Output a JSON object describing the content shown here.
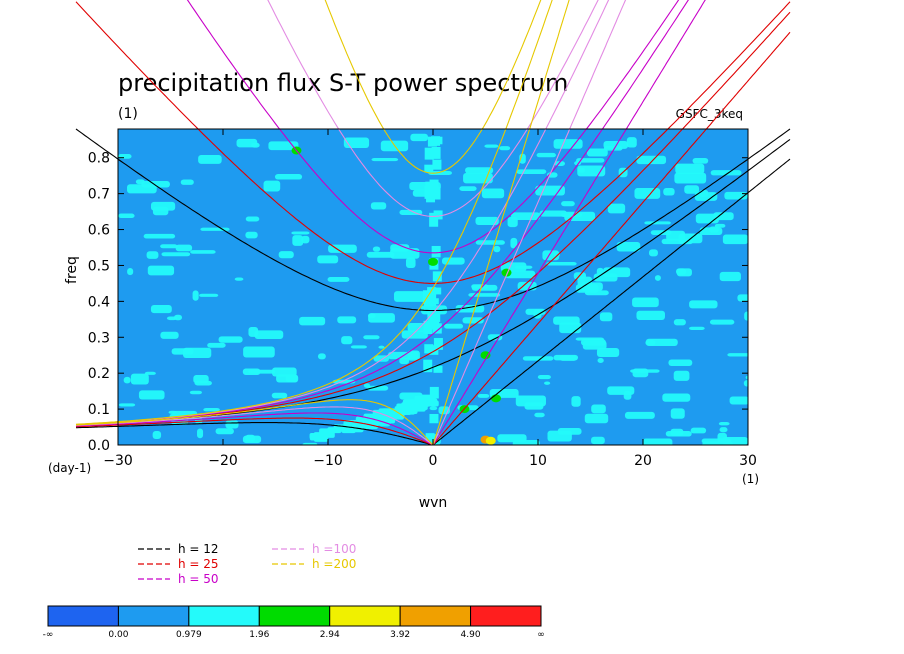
{
  "chart_data": {
    "type": "heatmap",
    "title": "precipitation flux S-T power spectrum",
    "units_title": "(1)",
    "subtitle_right": "GSFC_3keq",
    "xlabel": "wvn",
    "ylabel": "freq",
    "x_units": "(1)",
    "y_units": "(day-1)",
    "xlim": [
      -30,
      30
    ],
    "ylim": [
      0,
      0.88
    ],
    "x_ticks": [
      -30,
      -20,
      -10,
      0,
      10,
      20,
      30
    ],
    "y_ticks": [
      0.0,
      0.1,
      0.2,
      0.3,
      0.4,
      0.5,
      0.6,
      0.7,
      0.8
    ],
    "x_tick_labels": [
      "−30",
      "−20",
      "−10",
      "0",
      "10",
      "20",
      "30"
    ],
    "y_tick_labels": [
      "0.0",
      "0.1",
      "0.2",
      "0.3",
      "0.4",
      "0.5",
      "0.6",
      "0.7",
      "0.8"
    ],
    "colorbar": {
      "labels": [
        "-∞",
        "0.00",
        "0.979",
        "1.96",
        "2.94",
        "3.92",
        "4.90",
        "∞"
      ],
      "colors": [
        "#1e64f0",
        "#1e9bf0",
        "#24fafa",
        "#00dc00",
        "#f0f000",
        "#f0a000",
        "#ff1e1e"
      ]
    },
    "background_level_colors": [
      "#1e9bf0",
      "#24fafa"
    ],
    "dispersion_curves": [
      {
        "name": "h = 12",
        "h": 12,
        "color": "#000000"
      },
      {
        "name": "h = 25",
        "h": 25,
        "color": "#e00000"
      },
      {
        "name": "h = 50",
        "h": 50,
        "color": "#c800c8"
      },
      {
        "name": "h =100",
        "h": 100,
        "color": "#e38ce3"
      },
      {
        "name": "h =200",
        "h": 200,
        "color": "#e6c800"
      }
    ],
    "hotspots": [
      {
        "x": 5,
        "y": 0.015,
        "level": "3.92"
      },
      {
        "x": 5.5,
        "y": 0.012,
        "level": "2.94"
      },
      {
        "x": 6,
        "y": 0.13,
        "level": "1.96"
      },
      {
        "x": 5,
        "y": 0.25,
        "level": "1.96"
      },
      {
        "x": 7,
        "y": 0.48,
        "level": "1.96"
      },
      {
        "x": 0,
        "y": 0.51,
        "level": "1.96"
      },
      {
        "x": -13,
        "y": 0.82,
        "level": "1.96"
      },
      {
        "x": 3,
        "y": 0.1,
        "level": "1.96"
      }
    ]
  }
}
